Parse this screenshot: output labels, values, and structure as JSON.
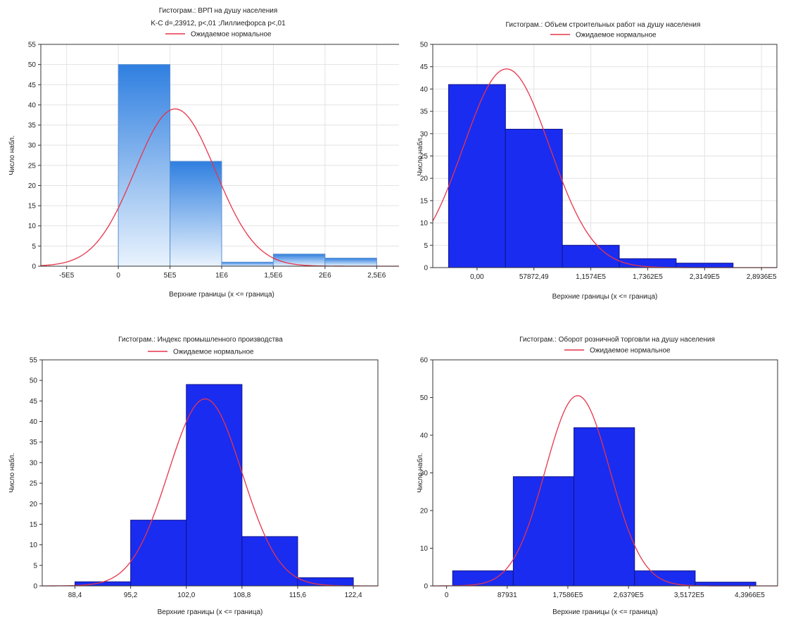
{
  "chart_data": [
    {
      "type": "bar",
      "title": "Гистограм.: ВРП на душу населения",
      "subtitle": "K-C d=,23912, p<,01 ;Лиллиефорса p<,01",
      "legend": "Ожидаемое нормальное",
      "xlabel": "Верхние границы (x <= граница)",
      "ylabel": "Число набл.",
      "xlim": [
        -750000,
        2750000
      ],
      "ylim": [
        0,
        55
      ],
      "yticks": [
        0,
        5,
        10,
        15,
        20,
        25,
        30,
        35,
        40,
        45,
        50,
        55
      ],
      "xticks": [
        -500000,
        0,
        500000,
        1000000,
        1500000,
        2000000,
        2500000
      ],
      "xtick_labels": [
        "-5E5",
        "0",
        "5E5",
        "1E6",
        "1,5E6",
        "2E6",
        "2,5E6"
      ],
      "bins": [
        {
          "x0": 0,
          "x1": 500000,
          "value": 50
        },
        {
          "x0": 500000,
          "x1": 1000000,
          "value": 26
        },
        {
          "x0": 1000000,
          "x1": 1500000,
          "value": 1
        },
        {
          "x0": 1500000,
          "x1": 2000000,
          "value": 3
        },
        {
          "x0": 2000000,
          "x1": 2500000,
          "value": 2
        }
      ],
      "normal": {
        "mean": 550000,
        "peak": 39,
        "sd": 390000
      },
      "bar_color": "#3a8ee6",
      "bar_style": "gradient",
      "curve_color": "#e8344a",
      "grid": true
    },
    {
      "type": "bar",
      "title": "Гистограм.: Объем строительных работ на душу населения",
      "subtitle": "",
      "legend": "Ожидаемое нормальное",
      "xlabel": "Верхние границы (x <= граница)",
      "ylabel": "Число набл.",
      "xlim": [
        -45000,
        305000
      ],
      "ylim": [
        0,
        50
      ],
      "yticks": [
        0,
        5,
        10,
        15,
        20,
        25,
        30,
        35,
        40,
        45,
        50
      ],
      "xticks": [
        0,
        57872.49,
        115740,
        173620,
        231490,
        289360
      ],
      "xtick_labels": [
        "0,00",
        "57872,49",
        "1,1574E5",
        "1,7362E5",
        "2,3149E5",
        "2,8936E5"
      ],
      "bins": [
        {
          "x0": -28936,
          "x1": 28936,
          "value": 41
        },
        {
          "x0": 28936,
          "x1": 86808,
          "value": 31
        },
        {
          "x0": 86808,
          "x1": 144680,
          "value": 5
        },
        {
          "x0": 144680,
          "x1": 202552,
          "value": 2
        },
        {
          "x0": 202552,
          "x1": 260424,
          "value": 1
        }
      ],
      "normal": {
        "mean": 30000,
        "peak": 44.5,
        "sd": 44000
      },
      "bar_color": "#1a2cf0",
      "bar_style": "solid",
      "curve_color": "#e8344a",
      "grid": true
    },
    {
      "type": "bar",
      "title": "Гистограм.: Индекс промышленного производства",
      "subtitle": "",
      "legend": "Ожидаемое нормальное",
      "xlabel": "Верхние границы (x <= граница)",
      "ylabel": "Число набл.",
      "xlim": [
        84.4,
        125.4
      ],
      "ylim": [
        0,
        55
      ],
      "yticks": [
        0,
        5,
        10,
        15,
        20,
        25,
        30,
        35,
        40,
        45,
        50,
        55
      ],
      "xticks": [
        88.4,
        95.2,
        102.0,
        108.8,
        115.6,
        122.4
      ],
      "xtick_labels": [
        "88,4",
        "95,2",
        "102,0",
        "108,8",
        "115,6",
        "122,4"
      ],
      "bins": [
        {
          "x0": 88.4,
          "x1": 95.2,
          "value": 1
        },
        {
          "x0": 95.2,
          "x1": 102.0,
          "value": 16
        },
        {
          "x0": 102.0,
          "x1": 108.8,
          "value": 49
        },
        {
          "x0": 108.8,
          "x1": 115.6,
          "value": 12
        },
        {
          "x0": 115.6,
          "x1": 122.4,
          "value": 2
        }
      ],
      "normal": {
        "mean": 104.3,
        "peak": 45.5,
        "sd": 4.5
      },
      "bar_color": "#1a2cf0",
      "bar_style": "solid",
      "curve_color": "#e8344a",
      "grid": false
    },
    {
      "type": "bar",
      "title": "Гистограм.: Оборот розничной торговли на душу населения",
      "subtitle": "",
      "legend": "Ожидаемое нормальное",
      "xlabel": "Верхние границы (x <= граница)",
      "ylabel": "Число набл.",
      "xlim": [
        -20000,
        480000
      ],
      "ylim": [
        0,
        60
      ],
      "yticks": [
        0,
        10,
        20,
        30,
        40,
        50,
        60
      ],
      "xticks": [
        0,
        87931,
        175860,
        263790,
        351720,
        439660
      ],
      "xtick_labels": [
        "0",
        "87931",
        "1,7586E5",
        "2,6379E5",
        "3,5172E5",
        "4,3966E5"
      ],
      "bins": [
        {
          "x0": 8793,
          "x1": 96724,
          "value": 4
        },
        {
          "x0": 96724,
          "x1": 184655,
          "value": 29
        },
        {
          "x0": 184655,
          "x1": 272586,
          "value": 42
        },
        {
          "x0": 272586,
          "x1": 360517,
          "value": 4
        },
        {
          "x0": 360517,
          "x1": 448448,
          "value": 1
        }
      ],
      "normal": {
        "mean": 190000,
        "peak": 50.5,
        "sd": 47000
      },
      "bar_color": "#1a2cf0",
      "bar_style": "solid",
      "curve_color": "#e8344a",
      "grid": false
    }
  ]
}
